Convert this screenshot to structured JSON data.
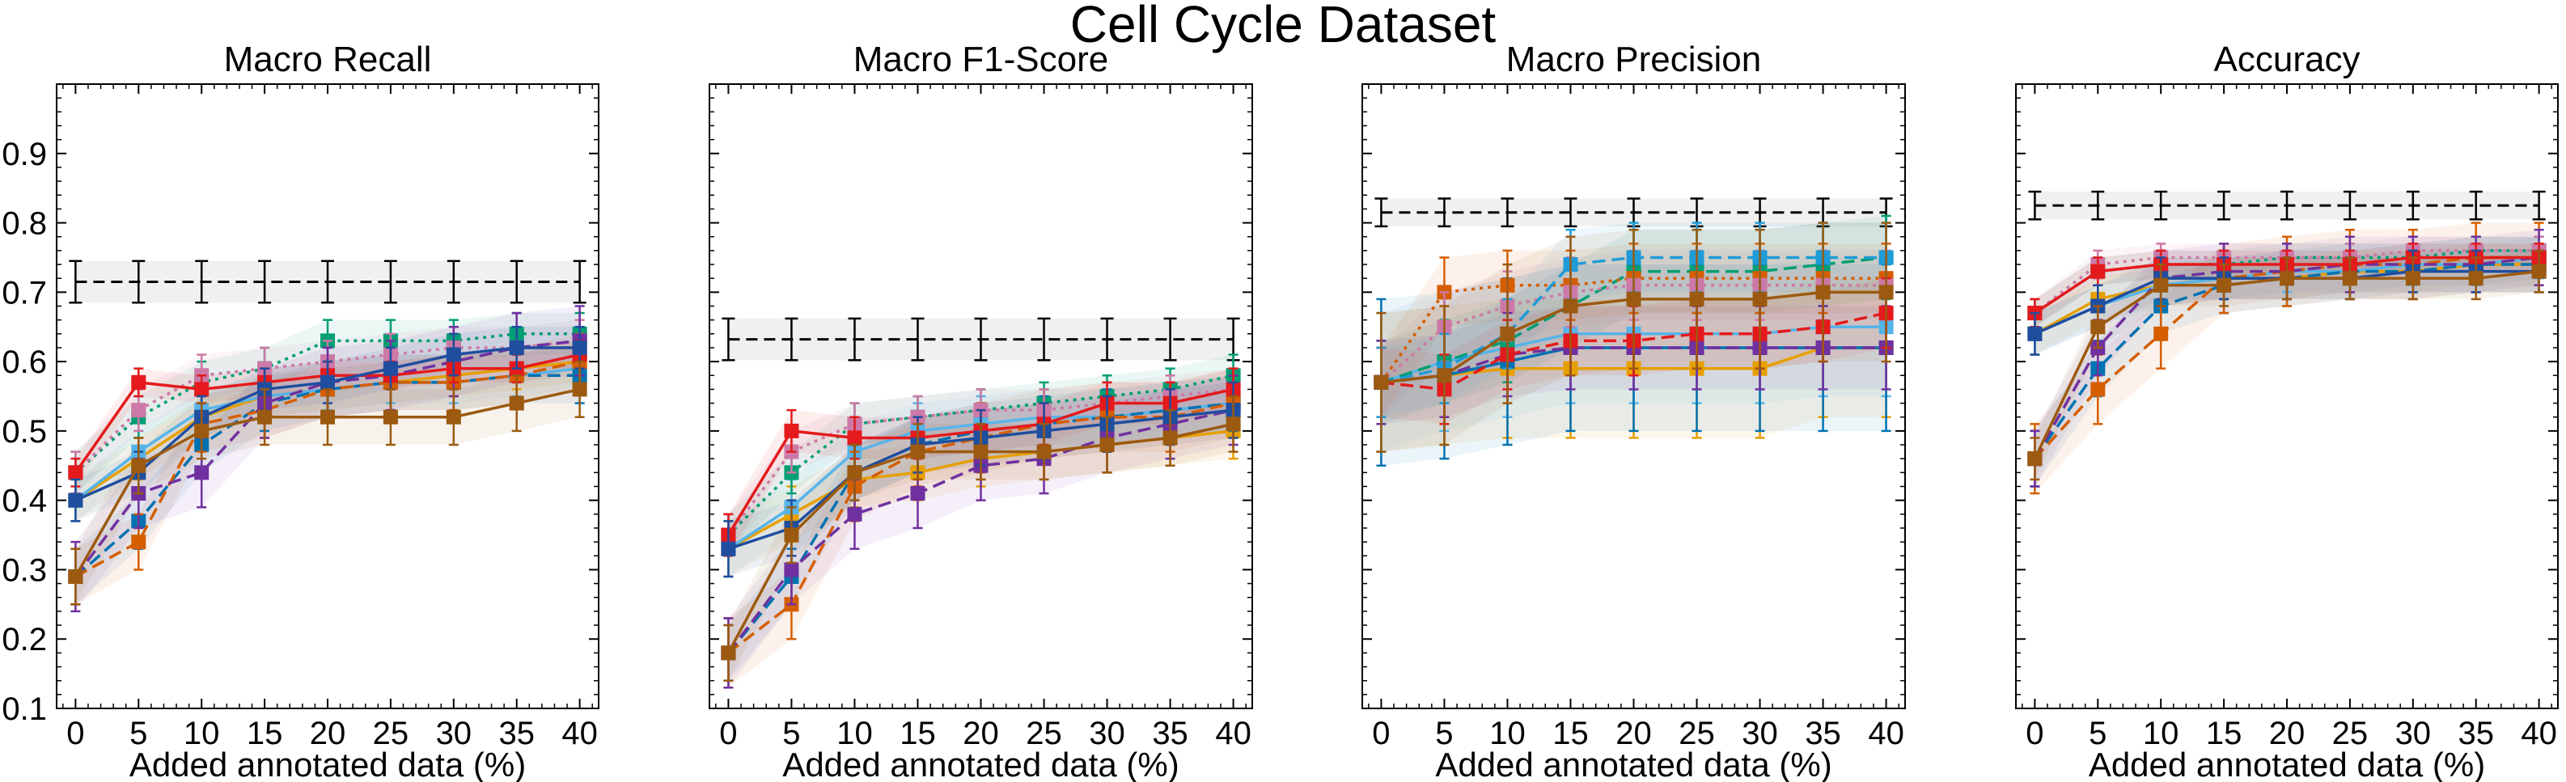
{
  "figure": {
    "title": "Cell Cycle Dataset"
  },
  "chart_data": [
    {
      "type": "line",
      "title": "Macro Recall",
      "xlabel": "Added annotated data (%)",
      "ylabel": "",
      "x": [
        0,
        5,
        10,
        15,
        20,
        25,
        30,
        35,
        40
      ],
      "xticks": [
        "0",
        "5",
        "10",
        "15",
        "20",
        "25",
        "30",
        "35",
        "40"
      ],
      "yticks": [
        "0.1",
        "0.2",
        "0.3",
        "0.4",
        "0.5",
        "0.6",
        "0.7",
        "0.8",
        "0.9"
      ],
      "ylim": [
        0.1,
        1.0
      ],
      "baseline": {
        "value": 0.715,
        "band": [
          0.685,
          0.745
        ]
      },
      "series": [
        {
          "color": "#E69F00",
          "dash": "solid",
          "values": [
            0.4,
            0.46,
            0.52,
            0.55,
            0.56,
            0.57,
            0.58,
            0.59,
            0.6
          ],
          "err": 0.03
        },
        {
          "color": "#56B4E9",
          "dash": "solid",
          "values": [
            0.4,
            0.47,
            0.53,
            0.55,
            0.56,
            0.57,
            0.57,
            0.58,
            0.59
          ],
          "err": 0.03
        },
        {
          "color": "#009E73",
          "dash": "dotted",
          "values": [
            0.44,
            0.52,
            0.57,
            0.59,
            0.63,
            0.63,
            0.63,
            0.64,
            0.64
          ],
          "err": 0.03
        },
        {
          "color": "#0072B2",
          "dash": "dashed",
          "values": [
            0.29,
            0.37,
            0.48,
            0.54,
            0.56,
            0.57,
            0.57,
            0.58,
            0.58
          ],
          "err": 0.04
        },
        {
          "color": "#D55E00",
          "dash": "dashed",
          "values": [
            0.29,
            0.34,
            0.51,
            0.53,
            0.56,
            0.57,
            0.57,
            0.58,
            0.6
          ],
          "err": 0.04
        },
        {
          "color": "#CC79A7",
          "dash": "dotted",
          "values": [
            0.44,
            0.53,
            0.58,
            0.59,
            0.6,
            0.61,
            0.62,
            0.62,
            0.63
          ],
          "err": 0.03
        },
        {
          "color": "#7030A0",
          "dash": "dashed",
          "values": [
            0.29,
            0.41,
            0.44,
            0.54,
            0.57,
            0.58,
            0.6,
            0.62,
            0.63
          ],
          "err": 0.05
        },
        {
          "color": "#E41A1C",
          "dash": "solid",
          "values": [
            0.44,
            0.57,
            0.56,
            0.57,
            0.58,
            0.58,
            0.59,
            0.59,
            0.61
          ],
          "err": 0.02
        },
        {
          "color": "#1F4E9F",
          "dash": "solid",
          "values": [
            0.4,
            0.44,
            0.52,
            0.56,
            0.57,
            0.59,
            0.61,
            0.62,
            0.62
          ],
          "err": 0.03
        },
        {
          "color": "#9C5A10",
          "dash": "solid",
          "values": [
            0.29,
            0.45,
            0.5,
            0.52,
            0.52,
            0.52,
            0.52,
            0.54,
            0.56
          ],
          "err": 0.04
        }
      ]
    },
    {
      "type": "line",
      "title": "Macro F1-Score",
      "xlabel": "Added annotated data (%)",
      "ylabel": "",
      "x": [
        0,
        5,
        10,
        15,
        20,
        25,
        30,
        35,
        40
      ],
      "xticks": [
        "0",
        "5",
        "10",
        "15",
        "20",
        "25",
        "30",
        "35",
        "40"
      ],
      "yticks": [],
      "ylim": [
        0.1,
        1.0
      ],
      "baseline": {
        "value": 0.632,
        "band": [
          0.602,
          0.662
        ]
      },
      "series": [
        {
          "color": "#E69F00",
          "dash": "solid",
          "values": [
            0.33,
            0.38,
            0.43,
            0.44,
            0.46,
            0.47,
            0.48,
            0.49,
            0.5
          ],
          "err": 0.04
        },
        {
          "color": "#56B4E9",
          "dash": "solid",
          "values": [
            0.33,
            0.39,
            0.47,
            0.5,
            0.51,
            0.52,
            0.52,
            0.53,
            0.54
          ],
          "err": 0.04
        },
        {
          "color": "#009E73",
          "dash": "dotted",
          "values": [
            0.35,
            0.44,
            0.51,
            0.52,
            0.53,
            0.54,
            0.55,
            0.56,
            0.58
          ],
          "err": 0.03
        },
        {
          "color": "#0072B2",
          "dash": "dashed",
          "values": [
            0.18,
            0.29,
            0.44,
            0.48,
            0.5,
            0.51,
            0.52,
            0.53,
            0.54
          ],
          "err": 0.04
        },
        {
          "color": "#D55E00",
          "dash": "dashed",
          "values": [
            0.18,
            0.25,
            0.42,
            0.47,
            0.49,
            0.51,
            0.52,
            0.52,
            0.54
          ],
          "err": 0.05
        },
        {
          "color": "#CC79A7",
          "dash": "dotted",
          "values": [
            0.35,
            0.47,
            0.51,
            0.52,
            0.53,
            0.53,
            0.54,
            0.55,
            0.56
          ],
          "err": 0.03
        },
        {
          "color": "#7030A0",
          "dash": "dashed",
          "values": [
            0.18,
            0.3,
            0.38,
            0.41,
            0.45,
            0.46,
            0.49,
            0.51,
            0.53
          ],
          "err": 0.05
        },
        {
          "color": "#E41A1C",
          "dash": "solid",
          "values": [
            0.35,
            0.5,
            0.49,
            0.49,
            0.5,
            0.51,
            0.54,
            0.54,
            0.56
          ],
          "err": 0.03
        },
        {
          "color": "#1F4E9F",
          "dash": "solid",
          "values": [
            0.33,
            0.36,
            0.44,
            0.48,
            0.49,
            0.5,
            0.51,
            0.52,
            0.53
          ],
          "err": 0.04
        },
        {
          "color": "#9C5A10",
          "dash": "solid",
          "values": [
            0.18,
            0.35,
            0.44,
            0.47,
            0.47,
            0.47,
            0.48,
            0.49,
            0.51
          ],
          "err": 0.04
        }
      ]
    },
    {
      "type": "line",
      "title": "Macro Precision",
      "xlabel": "Added annotated data (%)",
      "ylabel": "",
      "x": [
        0,
        5,
        10,
        15,
        20,
        25,
        30,
        35,
        40
      ],
      "xticks": [
        "0",
        "5",
        "10",
        "15",
        "20",
        "25",
        "30",
        "35",
        "40"
      ],
      "yticks": [],
      "ylim": [
        0.1,
        1.0
      ],
      "baseline": {
        "value": 0.815,
        "band": [
          0.795,
          0.835
        ]
      },
      "series": [
        {
          "color": "#E69F00",
          "dash": "solid",
          "values": [
            0.57,
            0.58,
            0.59,
            0.59,
            0.59,
            0.59,
            0.59,
            0.62,
            0.62
          ],
          "err": 0.1
        },
        {
          "color": "#56B4E9",
          "dash": "solid",
          "values": [
            0.57,
            0.6,
            0.62,
            0.64,
            0.64,
            0.64,
            0.64,
            0.65,
            0.65
          ],
          "err": 0.1
        },
        {
          "color": "#009E73",
          "dash": "dashed",
          "values": [
            0.57,
            0.6,
            0.63,
            0.68,
            0.73,
            0.73,
            0.73,
            0.74,
            0.75
          ],
          "err": 0.06
        },
        {
          "color": "#0072B2",
          "dash": "solid",
          "values": [
            0.57,
            0.58,
            0.6,
            0.62,
            0.62,
            0.62,
            0.62,
            0.62,
            0.62
          ],
          "err": 0.12
        },
        {
          "color": "#D55E00",
          "dash": "dotted",
          "values": [
            0.57,
            0.7,
            0.71,
            0.71,
            0.72,
            0.72,
            0.72,
            0.72,
            0.72
          ],
          "err": 0.05
        },
        {
          "color": "#CC79A7",
          "dash": "dotted",
          "values": [
            0.57,
            0.65,
            0.68,
            0.7,
            0.71,
            0.71,
            0.71,
            0.71,
            0.71
          ],
          "err": 0.05
        },
        {
          "color": "#7030A0",
          "dash": "dashed",
          "values": [
            0.57,
            0.58,
            0.61,
            0.62,
            0.62,
            0.62,
            0.62,
            0.62,
            0.62
          ],
          "err": 0.06
        },
        {
          "color": "#E41A1C",
          "dash": "dashed",
          "values": [
            0.57,
            0.56,
            0.61,
            0.63,
            0.63,
            0.64,
            0.64,
            0.65,
            0.67
          ],
          "err": 0.05
        },
        {
          "color": "#1F9BD7",
          "dash": "dashed",
          "values": [
            0.57,
            0.59,
            0.64,
            0.74,
            0.75,
            0.75,
            0.75,
            0.75,
            0.75
          ],
          "err": 0.05
        },
        {
          "color": "#9C5A10",
          "dash": "solid",
          "values": [
            0.57,
            0.58,
            0.64,
            0.68,
            0.69,
            0.69,
            0.69,
            0.7,
            0.7
          ],
          "err": 0.1
        }
      ]
    },
    {
      "type": "line",
      "title": "Accuracy",
      "xlabel": "Added annotated data (%)",
      "ylabel": "",
      "x": [
        0,
        5,
        10,
        15,
        20,
        25,
        30,
        35,
        40
      ],
      "xticks": [
        "0",
        "5",
        "10",
        "15",
        "20",
        "25",
        "30",
        "35",
        "40"
      ],
      "yticks": [],
      "ylim": [
        0.1,
        1.0
      ],
      "baseline": {
        "value": 0.825,
        "band": [
          0.805,
          0.845
        ]
      },
      "series": [
        {
          "color": "#E69F00",
          "dash": "solid",
          "values": [
            0.64,
            0.69,
            0.71,
            0.72,
            0.72,
            0.73,
            0.73,
            0.74,
            0.74
          ],
          "err": 0.03
        },
        {
          "color": "#56B4E9",
          "dash": "solid",
          "values": [
            0.64,
            0.68,
            0.71,
            0.72,
            0.73,
            0.73,
            0.74,
            0.74,
            0.75
          ],
          "err": 0.03
        },
        {
          "color": "#009E73",
          "dash": "dotted",
          "values": [
            0.67,
            0.73,
            0.74,
            0.74,
            0.75,
            0.75,
            0.75,
            0.76,
            0.76
          ],
          "err": 0.02
        },
        {
          "color": "#0072B2",
          "dash": "dashed",
          "values": [
            0.46,
            0.59,
            0.68,
            0.71,
            0.72,
            0.73,
            0.73,
            0.74,
            0.74
          ],
          "err": 0.04
        },
        {
          "color": "#D55E00",
          "dash": "dashed",
          "values": [
            0.46,
            0.56,
            0.64,
            0.72,
            0.73,
            0.74,
            0.74,
            0.75,
            0.75
          ],
          "err": 0.05
        },
        {
          "color": "#CC79A7",
          "dash": "dotted",
          "values": [
            0.67,
            0.74,
            0.75,
            0.75,
            0.75,
            0.75,
            0.76,
            0.76,
            0.76
          ],
          "err": 0.02
        },
        {
          "color": "#7030A0",
          "dash": "dashed",
          "values": [
            0.46,
            0.62,
            0.72,
            0.73,
            0.73,
            0.74,
            0.74,
            0.74,
            0.75
          ],
          "err": 0.04
        },
        {
          "color": "#E41A1C",
          "dash": "solid",
          "values": [
            0.67,
            0.73,
            0.74,
            0.74,
            0.74,
            0.74,
            0.75,
            0.75,
            0.75
          ],
          "err": 0.02
        },
        {
          "color": "#1F4E9F",
          "dash": "solid",
          "values": [
            0.64,
            0.68,
            0.72,
            0.72,
            0.72,
            0.72,
            0.73,
            0.73,
            0.73
          ],
          "err": 0.03
        },
        {
          "color": "#9C5A10",
          "dash": "solid",
          "values": [
            0.46,
            0.65,
            0.71,
            0.71,
            0.72,
            0.72,
            0.72,
            0.72,
            0.73
          ],
          "err": 0.03
        }
      ]
    }
  ]
}
